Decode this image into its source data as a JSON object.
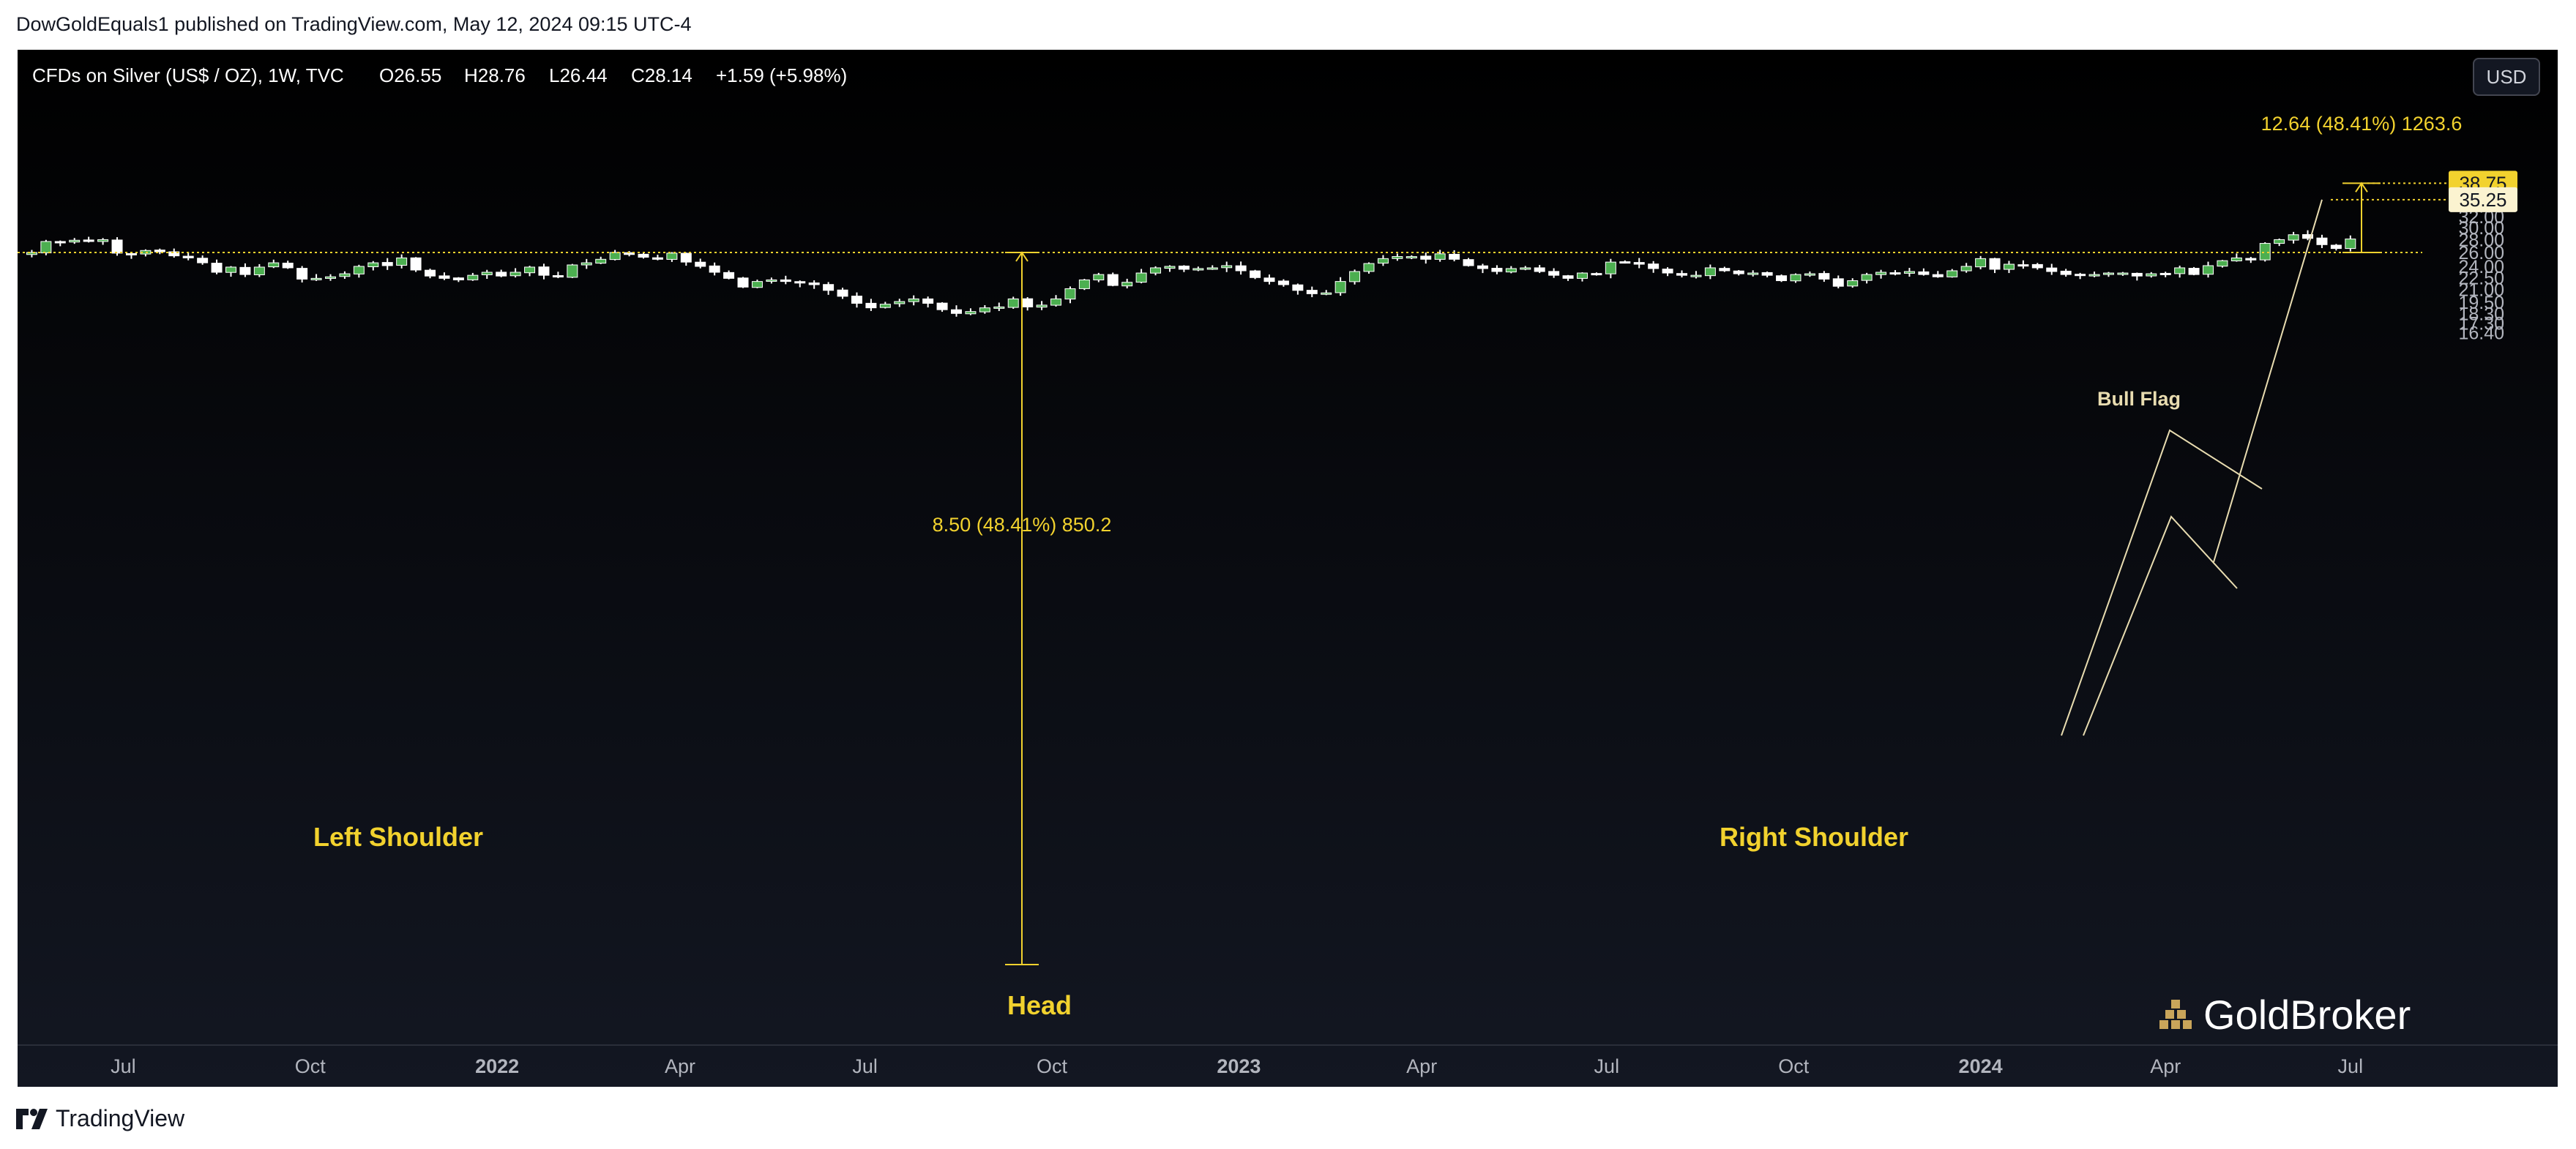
{
  "header": {
    "published": "DowGoldEquals1 published on TradingView.com, May 12, 2024 09:15 UTC-4"
  },
  "legend": {
    "symbol": "CFDs on Silver (US$ / OZ), 1W, TVC",
    "open": "O26.55",
    "high": "H28.76",
    "low": "L26.44",
    "close": "C28.14",
    "change": "+1.59 (+5.98%)"
  },
  "currency_button": "USD",
  "watermark": "GoldBroker",
  "footer_brand": "TradingView",
  "colors": {
    "up": "#4caf50",
    "down": "#ffffff",
    "yellow": "#f2d22e",
    "background_top": "#000000",
    "background_bottom": "#131722"
  },
  "chart_data": {
    "type": "candlestick",
    "title": "CFDs on Silver (US$ / OZ), 1W, TVC",
    "x_ticks": [
      {
        "label": "Jul",
        "date": "2021-07-01"
      },
      {
        "label": "Oct",
        "date": "2021-10-01"
      },
      {
        "label": "2022",
        "date": "2022-01-01"
      },
      {
        "label": "Apr",
        "date": "2022-04-01"
      },
      {
        "label": "Jul",
        "date": "2022-07-01"
      },
      {
        "label": "Oct",
        "date": "2022-10-01"
      },
      {
        "label": "2023",
        "date": "2023-01-01"
      },
      {
        "label": "Apr",
        "date": "2023-04-01"
      },
      {
        "label": "Jul",
        "date": "2023-07-01"
      },
      {
        "label": "Oct",
        "date": "2023-10-01"
      },
      {
        "label": "2024",
        "date": "2024-01-01"
      },
      {
        "label": "Apr",
        "date": "2024-04-01"
      },
      {
        "label": "Jul",
        "date": "2024-07-01"
      }
    ],
    "y_ticks": [
      "38.00",
      "36.00",
      "34.00",
      "32.00",
      "30.00",
      "28.00",
      "26.00",
      "24.00",
      "22.50",
      "21.00",
      "19.50",
      "18.30",
      "17.30",
      "16.40"
    ],
    "y_scale": "log",
    "ylim": [
      16.4,
      41.0
    ],
    "xlim": [
      "2021-05-10",
      "2024-09-23"
    ],
    "grid": false,
    "closes": [
      26.0,
      27.7,
      27.6,
      27.9,
      27.7,
      28.0,
      25.9,
      25.7,
      26.3,
      26.1,
      25.5,
      25.2,
      24.5,
      23.2,
      23.9,
      22.9,
      23.9,
      24.5,
      23.8,
      22.3,
      22.4,
      22.6,
      23.0,
      24.0,
      24.5,
      24.1,
      25.2,
      23.5,
      22.7,
      22.4,
      22.2,
      22.8,
      23.2,
      22.7,
      23.2,
      23.9,
      22.8,
      22.6,
      24.2,
      24.5,
      25.0,
      26.0,
      25.7,
      25.3,
      25.0,
      25.9,
      24.6,
      24.0,
      23.2,
      22.4,
      21.3,
      22.0,
      22.2,
      22.0,
      21.8,
      21.6,
      20.9,
      20.2,
      19.4,
      18.9,
      19.3,
      19.6,
      19.9,
      19.4,
      18.7,
      18.3,
      18.5,
      18.9,
      19.0,
      19.9,
      19.0,
      19.2,
      19.9,
      21.1,
      22.2,
      22.9,
      21.5,
      21.9,
      23.1,
      23.8,
      24.0,
      23.6,
      23.7,
      23.8,
      24.1,
      23.4,
      22.5,
      22.0,
      21.6,
      20.9,
      20.5,
      20.6,
      22.0,
      23.3,
      24.4,
      25.1,
      25.4,
      25.4,
      25.0,
      25.8,
      25.0,
      24.1,
      23.7,
      23.3,
      23.7,
      23.8,
      23.3,
      22.8,
      22.4,
      23.1,
      23.0,
      24.6,
      24.5,
      24.3,
      23.7,
      23.1,
      22.8,
      22.8,
      23.8,
      23.4,
      23.0,
      23.1,
      22.8,
      22.1,
      22.9,
      23.0,
      22.3,
      21.4,
      22.1,
      22.9,
      23.2,
      23.1,
      23.3,
      22.9,
      22.6,
      23.4,
      24.0,
      25.1,
      23.6,
      24.3,
      24.2,
      23.8,
      23.3,
      22.9,
      22.8,
      22.9,
      23.1,
      23.1,
      22.7,
      23.0,
      23.0,
      23.8,
      22.9,
      24.1,
      24.8,
      25.2,
      24.9,
      27.4,
      28.0,
      28.8,
      28.2,
      27.2,
      26.6,
      28.1
    ]
  },
  "annotations": {
    "left_shoulder": "Left Shoulder",
    "head": "Head",
    "right_shoulder": "Right Shoulder",
    "bull_flag": "Bull Flag",
    "measure_1": "8.50 (48.41%) 850.2",
    "measure_2": "12.64 (48.41%) 1263.6",
    "neckline_price": 26.0,
    "target_1": {
      "value": 35.25,
      "label": "35.25"
    },
    "target_2": {
      "value": 38.75,
      "label": "38.75"
    }
  }
}
